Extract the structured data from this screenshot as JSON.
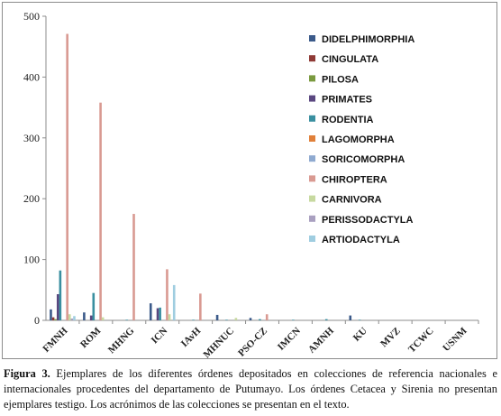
{
  "chart_data": {
    "type": "bar",
    "categories": [
      "FMNH",
      "ROM",
      "MHNG",
      "ICN",
      "IAvH",
      "MHNUC",
      "PSO-CZ",
      "IMCN",
      "AMNH",
      "KU",
      "MVZ",
      "TCWC",
      "USNM"
    ],
    "ylim": [
      0,
      500
    ],
    "yticks": [
      0,
      100,
      200,
      300,
      400,
      500
    ],
    "grid": false,
    "legend_position": "right",
    "series": [
      {
        "name": "DIDELPHIMORPHIA",
        "color": "#3b5a8a",
        "values": [
          18,
          13,
          0,
          28,
          0,
          9,
          4,
          0,
          0,
          8,
          0,
          0,
          0
        ]
      },
      {
        "name": "CINGULATA",
        "color": "#8f3a36",
        "values": [
          5,
          0,
          0,
          0,
          0,
          0,
          0,
          0,
          0,
          0,
          0,
          0,
          0
        ]
      },
      {
        "name": "PILOSA",
        "color": "#7a9a3f",
        "values": [
          2,
          0,
          0,
          0,
          0,
          0,
          0,
          0,
          0,
          0,
          0,
          0,
          0
        ]
      },
      {
        "name": "PRIMATES",
        "color": "#5a4780",
        "values": [
          43,
          8,
          0,
          20,
          0,
          0,
          0,
          0,
          0,
          0,
          0,
          0,
          0
        ]
      },
      {
        "name": "RODENTIA",
        "color": "#3a8fa0",
        "values": [
          82,
          45,
          1,
          21,
          1,
          1,
          2,
          1,
          2,
          1,
          0,
          0,
          0
        ]
      },
      {
        "name": "LAGOMORPHA",
        "color": "#e0803a",
        "values": [
          0,
          0,
          0,
          0,
          0,
          0,
          0,
          0,
          0,
          0,
          0,
          0,
          0
        ]
      },
      {
        "name": "SORICOMORPHA",
        "color": "#8faad0",
        "values": [
          0,
          0,
          0,
          0,
          0,
          0,
          0,
          0,
          0,
          0,
          0,
          0,
          0
        ]
      },
      {
        "name": "CHIROPTERA",
        "color": "#d99a92",
        "values": [
          471,
          358,
          175,
          84,
          44,
          0,
          10,
          0,
          0,
          0,
          0,
          0,
          0
        ]
      },
      {
        "name": "CARNIVORA",
        "color": "#c7d9a0",
        "values": [
          10,
          5,
          0,
          10,
          0,
          4,
          0,
          0,
          0,
          0,
          0,
          0,
          0
        ]
      },
      {
        "name": "PERISSODACTYLA",
        "color": "#a9a0c0",
        "values": [
          3,
          0,
          0,
          0,
          0,
          0,
          0,
          0,
          0,
          0,
          0,
          0,
          0
        ]
      },
      {
        "name": "ARTIODACTYLA",
        "color": "#9fcde0",
        "values": [
          7,
          0,
          0,
          58,
          0,
          0,
          0,
          0,
          0,
          0,
          0,
          0,
          0
        ]
      }
    ]
  },
  "caption": {
    "label": "Figura 3.",
    "text": " Ejemplares de los diferentes órdenes depositados en colecciones de referencia nacionales e internacionales procedentes del departamento de Putumayo. Los órdenes Cetacea y Sirenia no presentan ejemplares testigo. Los acrónimos de las colecciones se presentan en el texto."
  }
}
